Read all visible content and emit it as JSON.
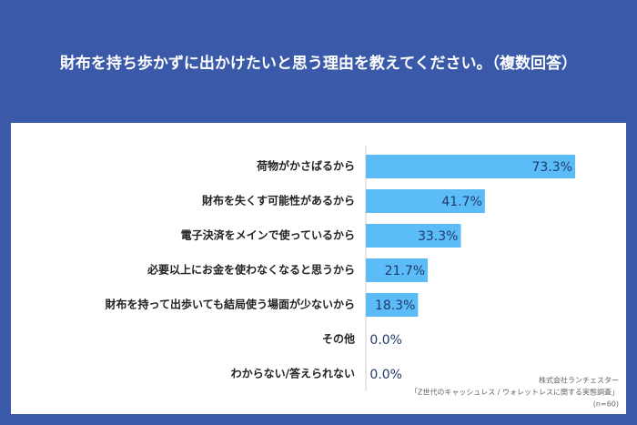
{
  "chart_data": {
    "type": "hbar",
    "title": "財布を持ち歩かずに出かけたいと思う理由を教えてください。（複数回答）",
    "categories": [
      "荷物がかさばるから",
      "財布を失くす可能性があるから",
      "電子決済をメインで使っているから",
      "必要以上にお金を使わなくなると思うから",
      "財布を持って出歩いても結局使う場面が少ないから",
      "その他",
      "わからない/答えられない"
    ],
    "values": [
      73.3,
      41.7,
      33.3,
      21.7,
      18.3,
      0.0,
      0.0
    ],
    "value_labels": [
      "73.3%",
      "41.7%",
      "33.3%",
      "21.7%",
      "18.3%",
      "0.0%",
      "0.0%"
    ],
    "color": "#5bbcf7",
    "xlim": [
      0,
      80
    ],
    "source": [
      "株式会社ランチェスター",
      "「Z世代のキャッシュレス / ウォレットレスに関する実態調査」",
      "(n=60)"
    ]
  }
}
